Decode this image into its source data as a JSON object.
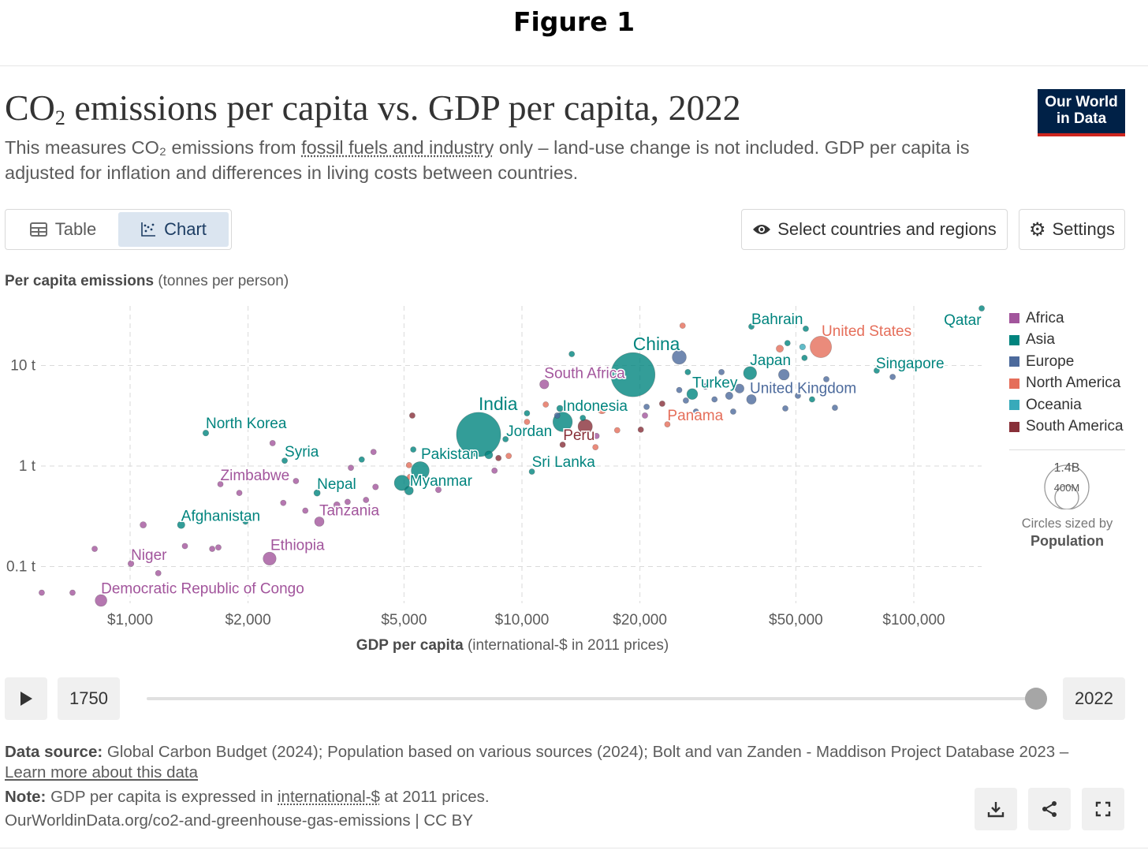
{
  "figure_label": "Figure 1",
  "header": {
    "title_pre": "CO",
    "title_sub": "2",
    "title_post": " emissions per capita vs. GDP per capita, 2022",
    "subtitle_a": "This measures CO₂ emissions from ",
    "subtitle_link": "fossil fuels and industry",
    "subtitle_b": " only – land-use change is not included. GDP per capita is adjusted for inflation and differences in living costs between countries.",
    "logo_line1": "Our World",
    "logo_line2": "in Data"
  },
  "controls": {
    "tab_table": "Table",
    "tab_chart": "Chart",
    "select_countries": "Select countries and regions",
    "settings": "Settings"
  },
  "timeline": {
    "start_year": "1750",
    "end_year": "2022",
    "position": 1.0
  },
  "footer": {
    "source_label": "Data source:",
    "source_text": " Global Carbon Budget (2024); Population based on various sources (2024); Bolt and van Zanden - Maddison Project Database 2023 – ",
    "learn_more": "Learn more about this data",
    "note_label": "Note:",
    "note_a": " GDP per capita is expressed in ",
    "note_link": "international-$",
    "note_b": " at 2011 prices.",
    "url": "OurWorldinData.org/co2-and-greenhouse-gas-emissions | CC BY"
  },
  "chart_data": {
    "type": "scatter",
    "title": "CO₂ emissions per capita vs. GDP per capita, 2022",
    "xlabel_bold": "GDP per capita",
    "xlabel_rest": " (international-$ in 2011 prices)",
    "ylabel_bold": "Per capita emissions",
    "ylabel_rest": " (tonnes per person)",
    "x_scale": "log",
    "y_scale": "log",
    "xlim": [
      570,
      150000
    ],
    "ylim": [
      0.04,
      40
    ],
    "grid": true,
    "x_ticks": [
      {
        "v": 1000,
        "label": "$1,000"
      },
      {
        "v": 2000,
        "label": "$2,000"
      },
      {
        "v": 5000,
        "label": "$5,000"
      },
      {
        "v": 10000,
        "label": "$10,000"
      },
      {
        "v": 20000,
        "label": "$20,000"
      },
      {
        "v": 50000,
        "label": "$50,000"
      },
      {
        "v": 100000,
        "label": "$100,000"
      }
    ],
    "y_ticks": [
      {
        "v": 0.1,
        "label": "0.1 t"
      },
      {
        "v": 1,
        "label": "1 t"
      },
      {
        "v": 10,
        "label": "10 t"
      }
    ],
    "legend_position": "right",
    "regions": [
      {
        "name": "Africa",
        "color": "#a2559c"
      },
      {
        "name": "Asia",
        "color": "#00847e"
      },
      {
        "name": "Europe",
        "color": "#4c6a9c"
      },
      {
        "name": "North America",
        "color": "#e56e5a"
      },
      {
        "name": "Oceania",
        "color": "#38aaba"
      },
      {
        "name": "South America",
        "color": "#883039"
      }
    ],
    "size_legend": {
      "large": "1.4B",
      "small": "400M",
      "caption": "Circles sized by",
      "variable": "Population",
      "large_value_millions": 1400,
      "small_value_millions": 400
    },
    "points": [
      {
        "label": "Qatar",
        "gdp": 149000,
        "co2": 37,
        "region": "Asia",
        "pop": 3
      },
      {
        "label": "Bahrain",
        "gdp": 38500,
        "co2": 24.4,
        "region": "Asia",
        "pop": 1.5
      },
      {
        "label": "United States",
        "gdp": 57900,
        "co2": 15.3,
        "region": "North America",
        "pop": 333
      },
      {
        "label": "China",
        "gdp": 19200,
        "co2": 8.1,
        "region": "Asia",
        "pop": 1410
      },
      {
        "label": "Japan",
        "gdp": 38200,
        "co2": 8.4,
        "region": "Asia",
        "pop": 125
      },
      {
        "label": "Singapore",
        "gdp": 80400,
        "co2": 8.9,
        "region": "Asia",
        "pop": 6
      },
      {
        "label": "United Kingdom",
        "gdp": 38500,
        "co2": 4.6,
        "region": "Europe",
        "pop": 67
      },
      {
        "label": "Turkey",
        "gdp": 27200,
        "co2": 5.2,
        "region": "Asia",
        "pop": 85
      },
      {
        "label": "South Africa",
        "gdp": 11400,
        "co2": 6.5,
        "region": "Africa",
        "pop": 60
      },
      {
        "label": "Indonesia",
        "gdp": 12700,
        "co2": 2.75,
        "region": "Asia",
        "pop": 275
      },
      {
        "label": "India",
        "gdp": 7750,
        "co2": 2.06,
        "region": "Asia",
        "pop": 1420
      },
      {
        "label": "Panama",
        "gdp": 23500,
        "co2": 2.6,
        "region": "North America",
        "pop": 4
      },
      {
        "label": "Jordan",
        "gdp": 9080,
        "co2": 1.85,
        "region": "Asia",
        "pop": 11
      },
      {
        "label": "Peru",
        "gdp": 14500,
        "co2": 2.47,
        "region": "South America",
        "pop": 150
      },
      {
        "label": "Sri Lanka",
        "gdp": 10600,
        "co2": 0.88,
        "region": "Asia",
        "pop": 22
      },
      {
        "label": "Pakistan",
        "gdp": 5500,
        "co2": 0.9,
        "region": "Asia",
        "pop": 235
      },
      {
        "label": "Myanmar",
        "gdp": 5150,
        "co2": 0.57,
        "region": "Asia",
        "pop": 54
      },
      {
        "label": "North Korea",
        "gdp": 1560,
        "co2": 2.13,
        "region": "Asia",
        "pop": 26
      },
      {
        "label": "Syria",
        "gdp": 2480,
        "co2": 1.13,
        "region": "Asia",
        "pop": 22
      },
      {
        "label": "Zimbabwe",
        "gdp": 1700,
        "co2": 0.66,
        "region": "Africa",
        "pop": 16
      },
      {
        "label": "Nepal",
        "gdp": 3000,
        "co2": 0.54,
        "region": "Asia",
        "pop": 30
      },
      {
        "label": "Tanzania",
        "gdp": 3040,
        "co2": 0.28,
        "region": "Africa",
        "pop": 65
      },
      {
        "label": "Afghanistan",
        "gdp": 1350,
        "co2": 0.26,
        "region": "Asia",
        "pop": 41
      },
      {
        "label": "Ethiopia",
        "gdp": 2270,
        "co2": 0.12,
        "region": "Africa",
        "pop": 123
      },
      {
        "label": "Niger",
        "gdp": 1005,
        "co2": 0.107,
        "region": "Africa",
        "pop": 26
      },
      {
        "label": "Democratic Republic of Congo",
        "gdp": 843,
        "co2": 0.046,
        "region": "Africa",
        "pop": 100
      },
      {
        "gdp": 595,
        "co2": 0.055,
        "region": "Africa",
        "pop": 12
      },
      {
        "gdp": 713,
        "co2": 0.055,
        "region": "Africa",
        "pop": 12
      },
      {
        "gdp": 812,
        "co2": 0.15,
        "region": "Africa",
        "pop": 12
      },
      {
        "gdp": 1080,
        "co2": 0.26,
        "region": "Africa",
        "pop": 30
      },
      {
        "gdp": 1180,
        "co2": 0.086,
        "region": "Africa",
        "pop": 12
      },
      {
        "gdp": 1380,
        "co2": 0.16,
        "region": "Africa",
        "pop": 14
      },
      {
        "gdp": 1620,
        "co2": 0.15,
        "region": "Africa",
        "pop": 12
      },
      {
        "gdp": 1680,
        "co2": 0.155,
        "region": "Africa",
        "pop": 12
      },
      {
        "gdp": 1900,
        "co2": 0.54,
        "region": "Africa",
        "pop": 12
      },
      {
        "gdp": 2310,
        "co2": 1.69,
        "region": "Africa",
        "pop": 12
      },
      {
        "gdp": 2650,
        "co2": 0.71,
        "region": "Africa",
        "pop": 12
      },
      {
        "gdp": 2800,
        "co2": 0.36,
        "region": "Africa",
        "pop": 20
      },
      {
        "gdp": 2460,
        "co2": 0.43,
        "region": "Africa",
        "pop": 12
      },
      {
        "gdp": 3370,
        "co2": 0.41,
        "region": "Africa",
        "pop": 30
      },
      {
        "gdp": 3590,
        "co2": 0.44,
        "region": "Africa",
        "pop": 14
      },
      {
        "gdp": 4000,
        "co2": 0.46,
        "region": "Africa",
        "pop": 20
      },
      {
        "gdp": 4230,
        "co2": 0.62,
        "region": "Africa",
        "pop": 25
      },
      {
        "gdp": 4180,
        "co2": 1.38,
        "region": "Africa",
        "pop": 12
      },
      {
        "gdp": 3660,
        "co2": 0.96,
        "region": "Africa",
        "pop": 12
      },
      {
        "gdp": 6120,
        "co2": 0.58,
        "region": "Africa",
        "pop": 25
      },
      {
        "gdp": 8510,
        "co2": 0.9,
        "region": "Africa",
        "pop": 12
      },
      {
        "gdp": 15500,
        "co2": 1.99,
        "region": "Africa",
        "pop": 12
      },
      {
        "gdp": 20600,
        "co2": 3.18,
        "region": "Africa",
        "pop": 12
      },
      {
        "gdp": 4940,
        "co2": 0.68,
        "region": "Asia",
        "pop": 170
      },
      {
        "gdp": 3900,
        "co2": 1.16,
        "region": "Asia",
        "pop": 12
      },
      {
        "gdp": 5280,
        "co2": 1.46,
        "region": "Asia",
        "pop": 12
      },
      {
        "gdp": 8230,
        "co2": 1.29,
        "region": "Asia",
        "pop": 45
      },
      {
        "gdp": 13400,
        "co2": 13.0,
        "region": "Asia",
        "pop": 12
      },
      {
        "gdp": 14300,
        "co2": 3.01,
        "region": "Asia",
        "pop": 12
      },
      {
        "gdp": 26500,
        "co2": 8.6,
        "region": "Asia",
        "pop": 12
      },
      {
        "gdp": 47600,
        "co2": 16.7,
        "region": "Asia",
        "pop": 12
      },
      {
        "gdp": 53000,
        "co2": 23.2,
        "region": "Asia",
        "pop": 12
      },
      {
        "gdp": 52600,
        "co2": 11.9,
        "region": "Asia",
        "pop": 12
      },
      {
        "gdp": 10300,
        "co2": 3.35,
        "region": "Asia",
        "pop": 12
      },
      {
        "gdp": 55000,
        "co2": 4.6,
        "region": "Asia",
        "pop": 12
      },
      {
        "gdp": 1970,
        "co2": 0.28,
        "region": "Asia",
        "pop": 14
      },
      {
        "gdp": 12500,
        "co2": 3.74,
        "region": "Asia",
        "pop": 30
      },
      {
        "gdp": 25200,
        "co2": 12.1,
        "region": "Europe",
        "pop": 144
      },
      {
        "gdp": 46600,
        "co2": 8.1,
        "region": "Europe",
        "pop": 84
      },
      {
        "gdp": 25200,
        "co2": 5.7,
        "region": "Europe",
        "pop": 12
      },
      {
        "gdp": 29400,
        "co2": 6.2,
        "region": "Europe",
        "pop": 25
      },
      {
        "gdp": 32300,
        "co2": 8.6,
        "region": "Europe",
        "pop": 14
      },
      {
        "gdp": 35900,
        "co2": 5.9,
        "region": "Europe",
        "pop": 60
      },
      {
        "gdp": 50600,
        "co2": 5.0,
        "region": "Europe",
        "pop": 12
      },
      {
        "gdp": 47000,
        "co2": 3.74,
        "region": "Europe",
        "pop": 12
      },
      {
        "gdp": 62900,
        "co2": 3.8,
        "region": "Europe",
        "pop": 12
      },
      {
        "gdp": 88300,
        "co2": 7.7,
        "region": "Europe",
        "pop": 12
      },
      {
        "gdp": 59800,
        "co2": 7.3,
        "region": "Europe",
        "pop": 12
      },
      {
        "gdp": 33800,
        "co2": 5.0,
        "region": "Europe",
        "pop": 40
      },
      {
        "gdp": 31000,
        "co2": 4.6,
        "region": "Europe",
        "pop": 14
      },
      {
        "gdp": 34600,
        "co2": 3.48,
        "region": "Europe",
        "pop": 12
      },
      {
        "gdp": 20800,
        "co2": 3.88,
        "region": "Europe",
        "pop": 12
      },
      {
        "gdp": 27800,
        "co2": 3.48,
        "region": "Europe",
        "pop": 12
      },
      {
        "gdp": 26200,
        "co2": 4.48,
        "region": "Europe",
        "pop": 12
      },
      {
        "gdp": 12300,
        "co2": 3.18,
        "region": "Europe",
        "pop": 12
      },
      {
        "gdp": 25700,
        "co2": 24.9,
        "region": "North America",
        "pop": 12
      },
      {
        "gdp": 45500,
        "co2": 14.7,
        "region": "North America",
        "pop": 38
      },
      {
        "gdp": 11500,
        "co2": 4.09,
        "region": "North America",
        "pop": 12
      },
      {
        "gdp": 5150,
        "co2": 1.02,
        "region": "North America",
        "pop": 12
      },
      {
        "gdp": 9250,
        "co2": 1.26,
        "region": "North America",
        "pop": 12
      },
      {
        "gdp": 15400,
        "co2": 1.54,
        "region": "North America",
        "pop": 12
      },
      {
        "gdp": 17500,
        "co2": 2.27,
        "region": "North America",
        "pop": 12
      },
      {
        "gdp": 10300,
        "co2": 2.75,
        "region": "North America",
        "pop": 12
      },
      {
        "gdp": 16000,
        "co2": 3.67,
        "region": "North America",
        "pop": 60
      },
      {
        "gdp": 5180,
        "co2": 0.78,
        "region": "North America",
        "pop": 12
      },
      {
        "gdp": 5250,
        "co2": 3.18,
        "region": "South America",
        "pop": 12
      },
      {
        "gdp": 8710,
        "co2": 1.2,
        "region": "South America",
        "pop": 12
      },
      {
        "gdp": 12700,
        "co2": 1.63,
        "region": "South America",
        "pop": 14
      },
      {
        "gdp": 20100,
        "co2": 2.3,
        "region": "South America",
        "pop": 12
      },
      {
        "gdp": 22800,
        "co2": 4.17,
        "region": "South America",
        "pop": 12
      },
      {
        "gdp": 52000,
        "co2": 15.3,
        "region": "Oceania",
        "pop": 26
      }
    ]
  }
}
